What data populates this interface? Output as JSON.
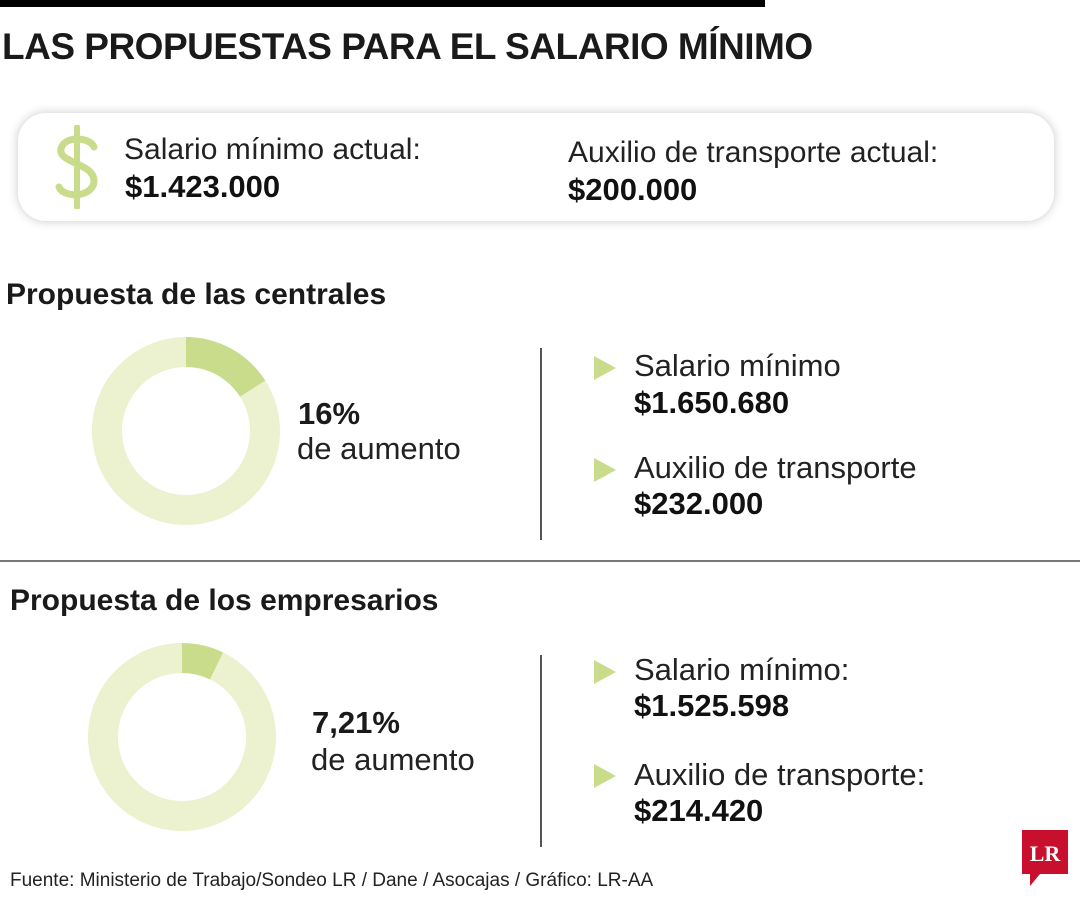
{
  "title": "LAS PROPUESTAS PARA EL SALARIO MÍNIMO",
  "current": {
    "salary_label": "Salario mínimo actual:",
    "salary_value": "$1.423.000",
    "transport_label": "Auxilio de transporte actual:",
    "transport_value": "$200.000",
    "icon": "dollar-icon"
  },
  "chart_data": [
    {
      "type": "pie",
      "title": "Propuesta de las centrales",
      "percent_label": "16%",
      "caption": "de aumento",
      "values": [
        16,
        84
      ],
      "colors": [
        "#c8dc8c",
        "#ecf1cf"
      ],
      "items": [
        {
          "label": "Salario mínimo",
          "value": "$1.650.680"
        },
        {
          "label": "Auxilio de transporte",
          "value": "$232.000"
        }
      ]
    },
    {
      "type": "pie",
      "title": "Propuesta de los empresarios",
      "percent_label": "7,21%",
      "caption": "de aumento",
      "values": [
        7.21,
        92.79
      ],
      "colors": [
        "#c8dc8c",
        "#ecf1cf"
      ],
      "items": [
        {
          "label": "Salario mínimo:",
          "value": "$1.525.598"
        },
        {
          "label": "Auxilio de transporte:",
          "value": "$214.420"
        }
      ]
    }
  ],
  "colors": {
    "accent": "#c8dc8c",
    "track": "#ecf1cf",
    "arrow": "#c8dc8c",
    "logo": "#c8102e"
  },
  "source": "Fuente: Ministerio de Trabajo/Sondeo LR / Dane / Asocajas / Gráfico: LR-AA",
  "logo_text": "LR"
}
